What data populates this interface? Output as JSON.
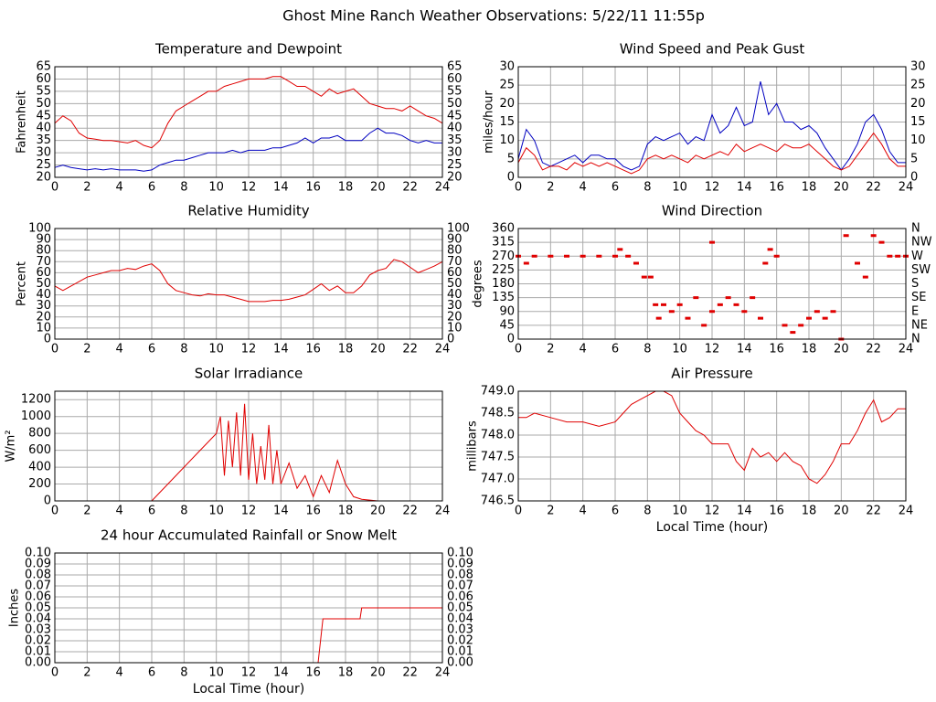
{
  "title": "Ghost Mine Ranch Weather Observations: 5/22/11 11:55p",
  "chart_data": [
    {
      "type": "line",
      "title": "Temperature and Dewpoint",
      "ylabel": "Fahrenheit",
      "x": [
        0,
        0.5,
        1,
        1.5,
        2,
        2.5,
        3,
        3.5,
        4,
        4.5,
        5,
        5.5,
        6,
        6.5,
        7,
        7.5,
        8,
        8.5,
        9,
        9.5,
        10,
        10.5,
        11,
        11.5,
        12,
        12.5,
        13,
        13.5,
        14,
        14.5,
        15,
        15.5,
        16,
        16.5,
        17,
        17.5,
        18,
        18.5,
        19,
        19.5,
        20,
        20.5,
        21,
        21.5,
        22,
        22.5,
        23,
        23.5,
        24
      ],
      "series": [
        {
          "color": "#e00000",
          "values": [
            42,
            45,
            43,
            38,
            36,
            35.5,
            35,
            35,
            34.5,
            34,
            35,
            33,
            32,
            35,
            42,
            47,
            49,
            51,
            53,
            55,
            55,
            57,
            58,
            59,
            60,
            60,
            60,
            61,
            61,
            59,
            57,
            57,
            55,
            53,
            56,
            54,
            55,
            56,
            53,
            50,
            49,
            48,
            48,
            47,
            49,
            47,
            45,
            44,
            42
          ]
        },
        {
          "color": "#0000c0",
          "values": [
            24,
            25,
            24,
            23.5,
            23,
            23.5,
            23,
            23.5,
            23,
            23,
            23,
            22.5,
            23,
            25,
            26,
            27,
            27,
            28,
            29,
            30,
            30,
            30,
            31,
            30,
            31,
            31,
            31,
            32,
            32,
            33,
            34,
            36,
            34,
            36,
            36,
            37,
            35,
            35,
            35,
            38,
            40,
            38,
            38,
            37,
            35,
            34,
            35,
            34,
            34
          ]
        }
      ],
      "xlim": [
        0,
        24
      ],
      "xticks": [
        0,
        2,
        4,
        6,
        8,
        10,
        12,
        14,
        16,
        18,
        20,
        22,
        24
      ],
      "ylim": [
        20,
        65
      ],
      "yticks": [
        20,
        25,
        30,
        35,
        40,
        45,
        50,
        55,
        60,
        65
      ],
      "mirror_y": true,
      "grid": true
    },
    {
      "type": "line",
      "title": "Wind Speed and Peak Gust",
      "ylabel": "miles/hour",
      "x": [
        0,
        0.5,
        1,
        1.5,
        2,
        2.5,
        3,
        3.5,
        4,
        4.5,
        5,
        5.5,
        6,
        6.5,
        7,
        7.5,
        8,
        8.5,
        9,
        9.5,
        10,
        10.5,
        11,
        11.5,
        12,
        12.5,
        13,
        13.5,
        14,
        14.5,
        15,
        15.5,
        16,
        16.5,
        17,
        17.5,
        18,
        18.5,
        19,
        19.5,
        20,
        20.5,
        21,
        21.5,
        22,
        22.5,
        23,
        23.5,
        24
      ],
      "series": [
        {
          "color": "#0000c0",
          "values": [
            5,
            13,
            10,
            4,
            3,
            4,
            5,
            6,
            4,
            6,
            6,
            5,
            5,
            3,
            2,
            3,
            9,
            11,
            10,
            11,
            12,
            9,
            11,
            10,
            17,
            12,
            14,
            19,
            14,
            15,
            26,
            17,
            20,
            15,
            15,
            13,
            14,
            12,
            8,
            5,
            2,
            5,
            9,
            15,
            17,
            13,
            7,
            4,
            4
          ]
        },
        {
          "color": "#e00000",
          "values": [
            4,
            8,
            6,
            2,
            3,
            3,
            2,
            4,
            3,
            4,
            3,
            4,
            3,
            2,
            1,
            2,
            5,
            6,
            5,
            6,
            5,
            4,
            6,
            5,
            6,
            7,
            6,
            9,
            7,
            8,
            9,
            8,
            7,
            9,
            8,
            8,
            9,
            7,
            5,
            3,
            2,
            3,
            6,
            9,
            12,
            9,
            5,
            3,
            3
          ]
        }
      ],
      "xlim": [
        0,
        24
      ],
      "xticks": [
        0,
        2,
        4,
        6,
        8,
        10,
        12,
        14,
        16,
        18,
        20,
        22,
        24
      ],
      "ylim": [
        0,
        30
      ],
      "yticks": [
        0,
        5,
        10,
        15,
        20,
        25,
        30
      ],
      "mirror_y": true,
      "grid": true
    },
    {
      "type": "line",
      "title": "Relative Humidity",
      "ylabel": "Percent",
      "x": [
        0,
        0.5,
        1,
        1.5,
        2,
        2.5,
        3,
        3.5,
        4,
        4.5,
        5,
        5.5,
        6,
        6.5,
        7,
        7.5,
        8,
        8.5,
        9,
        9.5,
        10,
        10.5,
        11,
        11.5,
        12,
        12.5,
        13,
        13.5,
        14,
        14.5,
        15,
        15.5,
        16,
        16.5,
        17,
        17.5,
        18,
        18.5,
        19,
        19.5,
        20,
        20.5,
        21,
        21.5,
        22,
        22.5,
        23,
        23.5,
        24
      ],
      "series": [
        {
          "color": "#e00000",
          "values": [
            48,
            44,
            48,
            52,
            56,
            58,
            60,
            62,
            62,
            64,
            63,
            66,
            68,
            62,
            50,
            44,
            42,
            40,
            39,
            41,
            40,
            40,
            38,
            36,
            34,
            34,
            34,
            35,
            35,
            36,
            38,
            40,
            45,
            50,
            44,
            48,
            42,
            42,
            48,
            58,
            62,
            64,
            72,
            70,
            65,
            60,
            63,
            66,
            70
          ]
        }
      ],
      "xlim": [
        0,
        24
      ],
      "xticks": [
        0,
        2,
        4,
        6,
        8,
        10,
        12,
        14,
        16,
        18,
        20,
        22,
        24
      ],
      "ylim": [
        0,
        100
      ],
      "yticks": [
        0,
        10,
        20,
        30,
        40,
        50,
        60,
        70,
        80,
        90,
        100
      ],
      "mirror_y": true,
      "grid": true
    },
    {
      "type": "scatter",
      "title": "Wind Direction",
      "ylabel": "degrees",
      "color": "#e00000",
      "x": [
        0,
        0.5,
        1,
        2,
        3,
        4,
        5,
        6,
        6.3,
        6.8,
        7.3,
        7.8,
        8.2,
        8.5,
        8.7,
        9,
        9.5,
        10,
        10.5,
        11,
        11.5,
        12,
        12,
        12.5,
        13,
        13.5,
        14,
        14.5,
        15,
        15.3,
        15.6,
        16,
        16.5,
        17,
        17.5,
        18,
        18.5,
        19,
        19.5,
        20,
        20.3,
        21,
        21.5,
        22,
        22.5,
        23,
        23.5,
        24
      ],
      "values": [
        270,
        247,
        270,
        270,
        270,
        270,
        270,
        270,
        292,
        270,
        247,
        202,
        202,
        112,
        68,
        112,
        90,
        112,
        68,
        135,
        45,
        90,
        315,
        112,
        135,
        112,
        90,
        135,
        68,
        247,
        292,
        270,
        45,
        22,
        45,
        68,
        90,
        68,
        90,
        0,
        337,
        247,
        202,
        337,
        315,
        270,
        270,
        270
      ],
      "xlim": [
        0,
        24
      ],
      "xticks": [
        0,
        2,
        4,
        6,
        8,
        10,
        12,
        14,
        16,
        18,
        20,
        22,
        24
      ],
      "ylim": [
        0,
        360
      ],
      "yticks": [
        0,
        45,
        90,
        135,
        180,
        225,
        270,
        315,
        360
      ],
      "y2lim": [
        0,
        360
      ],
      "y2ticks": [
        {
          "value": 0,
          "label": "N"
        },
        {
          "value": 45,
          "label": "NE"
        },
        {
          "value": 90,
          "label": "E"
        },
        {
          "value": 135,
          "label": "SE"
        },
        {
          "value": 180,
          "label": "S"
        },
        {
          "value": 225,
          "label": "SW"
        },
        {
          "value": 270,
          "label": "W"
        },
        {
          "value": 315,
          "label": "NW"
        },
        {
          "value": 360,
          "label": "N"
        }
      ],
      "grid": true
    },
    {
      "type": "line",
      "title": "Solar Irradiance",
      "ylabel": "W/m²",
      "x": [
        0,
        6,
        7,
        8,
        9,
        10,
        10.25,
        10.5,
        10.75,
        11,
        11.25,
        11.5,
        11.75,
        12,
        12.25,
        12.5,
        12.75,
        13,
        13.25,
        13.5,
        13.75,
        14,
        14.5,
        15,
        15.5,
        16,
        16.5,
        17,
        17.5,
        18,
        18.5,
        19,
        20,
        24
      ],
      "series": [
        {
          "color": "#e00000",
          "values": [
            0,
            0,
            200,
            400,
            600,
            800,
            1000,
            300,
            950,
            400,
            1050,
            300,
            1150,
            250,
            800,
            200,
            650,
            250,
            900,
            200,
            600,
            200,
            450,
            150,
            300,
            50,
            300,
            100,
            480,
            200,
            50,
            20,
            0,
            0
          ]
        }
      ],
      "xlim": [
        0,
        24
      ],
      "xticks": [
        0,
        2,
        4,
        6,
        8,
        10,
        12,
        14,
        16,
        18,
        20,
        22,
        24
      ],
      "ylim": [
        0,
        1300
      ],
      "yticks": [
        0,
        200,
        400,
        600,
        800,
        1000,
        1200
      ],
      "mirror_y": false,
      "grid": true
    },
    {
      "type": "line",
      "title": "Air Pressure",
      "ylabel": "millibars",
      "xlabel": "Local Time (hour)",
      "x": [
        0,
        0.5,
        1,
        2,
        3,
        4,
        5,
        6,
        6.5,
        7,
        7.5,
        8,
        8.5,
        9,
        9.5,
        10,
        10.5,
        11,
        11.5,
        12,
        13,
        13.5,
        14,
        14.5,
        15,
        15.5,
        16,
        16.5,
        17,
        17.5,
        18,
        18.5,
        19,
        19.5,
        20,
        20.5,
        21,
        21.5,
        22,
        22.5,
        23,
        23.5,
        24
      ],
      "series": [
        {
          "color": "#e00000",
          "values": [
            748.4,
            748.4,
            748.5,
            748.4,
            748.3,
            748.3,
            748.2,
            748.3,
            748.5,
            748.7,
            748.8,
            748.9,
            749.0,
            749.0,
            748.9,
            748.5,
            748.3,
            748.1,
            748.0,
            747.8,
            747.8,
            747.4,
            747.2,
            747.7,
            747.5,
            747.6,
            747.4,
            747.6,
            747.4,
            747.3,
            747.0,
            746.9,
            747.1,
            747.4,
            747.8,
            747.8,
            748.1,
            748.5,
            748.8,
            748.3,
            748.4,
            748.6,
            748.6
          ]
        }
      ],
      "xlim": [
        0,
        24
      ],
      "xticks": [
        0,
        2,
        4,
        6,
        8,
        10,
        12,
        14,
        16,
        18,
        20,
        22,
        24
      ],
      "ylim": [
        746.5,
        749.0
      ],
      "yticks": [
        746.5,
        {
          "value": 747.0,
          "label": "747.0"
        },
        747.5,
        {
          "value": 748.0,
          "label": "748.0"
        },
        748.5,
        {
          "value": 749.0,
          "label": "749.0"
        }
      ],
      "mirror_y": false,
      "grid": true
    },
    {
      "type": "line",
      "title": "24 hour Accumulated Rainfall or Snow Melt",
      "ylabel": "Inches",
      "xlabel": "Local Time (hour)",
      "x": [
        0,
        16.3,
        16.6,
        18.9,
        19,
        24
      ],
      "series": [
        {
          "color": "#e00000",
          "values": [
            0,
            0,
            0.04,
            0.04,
            0.05,
            0.05
          ]
        }
      ],
      "xlim": [
        0,
        24
      ],
      "xticks": [
        0,
        2,
        4,
        6,
        8,
        10,
        12,
        14,
        16,
        18,
        20,
        22,
        24
      ],
      "ylim": [
        0,
        0.1
      ],
      "yticks": [
        {
          "value": 0,
          "label": "0.00"
        },
        {
          "value": 0.01,
          "label": "0.01"
        },
        {
          "value": 0.02,
          "label": "0.02"
        },
        {
          "value": 0.03,
          "label": "0.03"
        },
        {
          "value": 0.04,
          "label": "0.04"
        },
        {
          "value": 0.05,
          "label": "0.05"
        },
        {
          "value": 0.06,
          "label": "0.06"
        },
        {
          "value": 0.07,
          "label": "0.07"
        },
        {
          "value": 0.08,
          "label": "0.08"
        },
        {
          "value": 0.09,
          "label": "0.09"
        },
        {
          "value": 0.1,
          "label": "0.10"
        }
      ],
      "mirror_y": true,
      "grid": true
    }
  ]
}
